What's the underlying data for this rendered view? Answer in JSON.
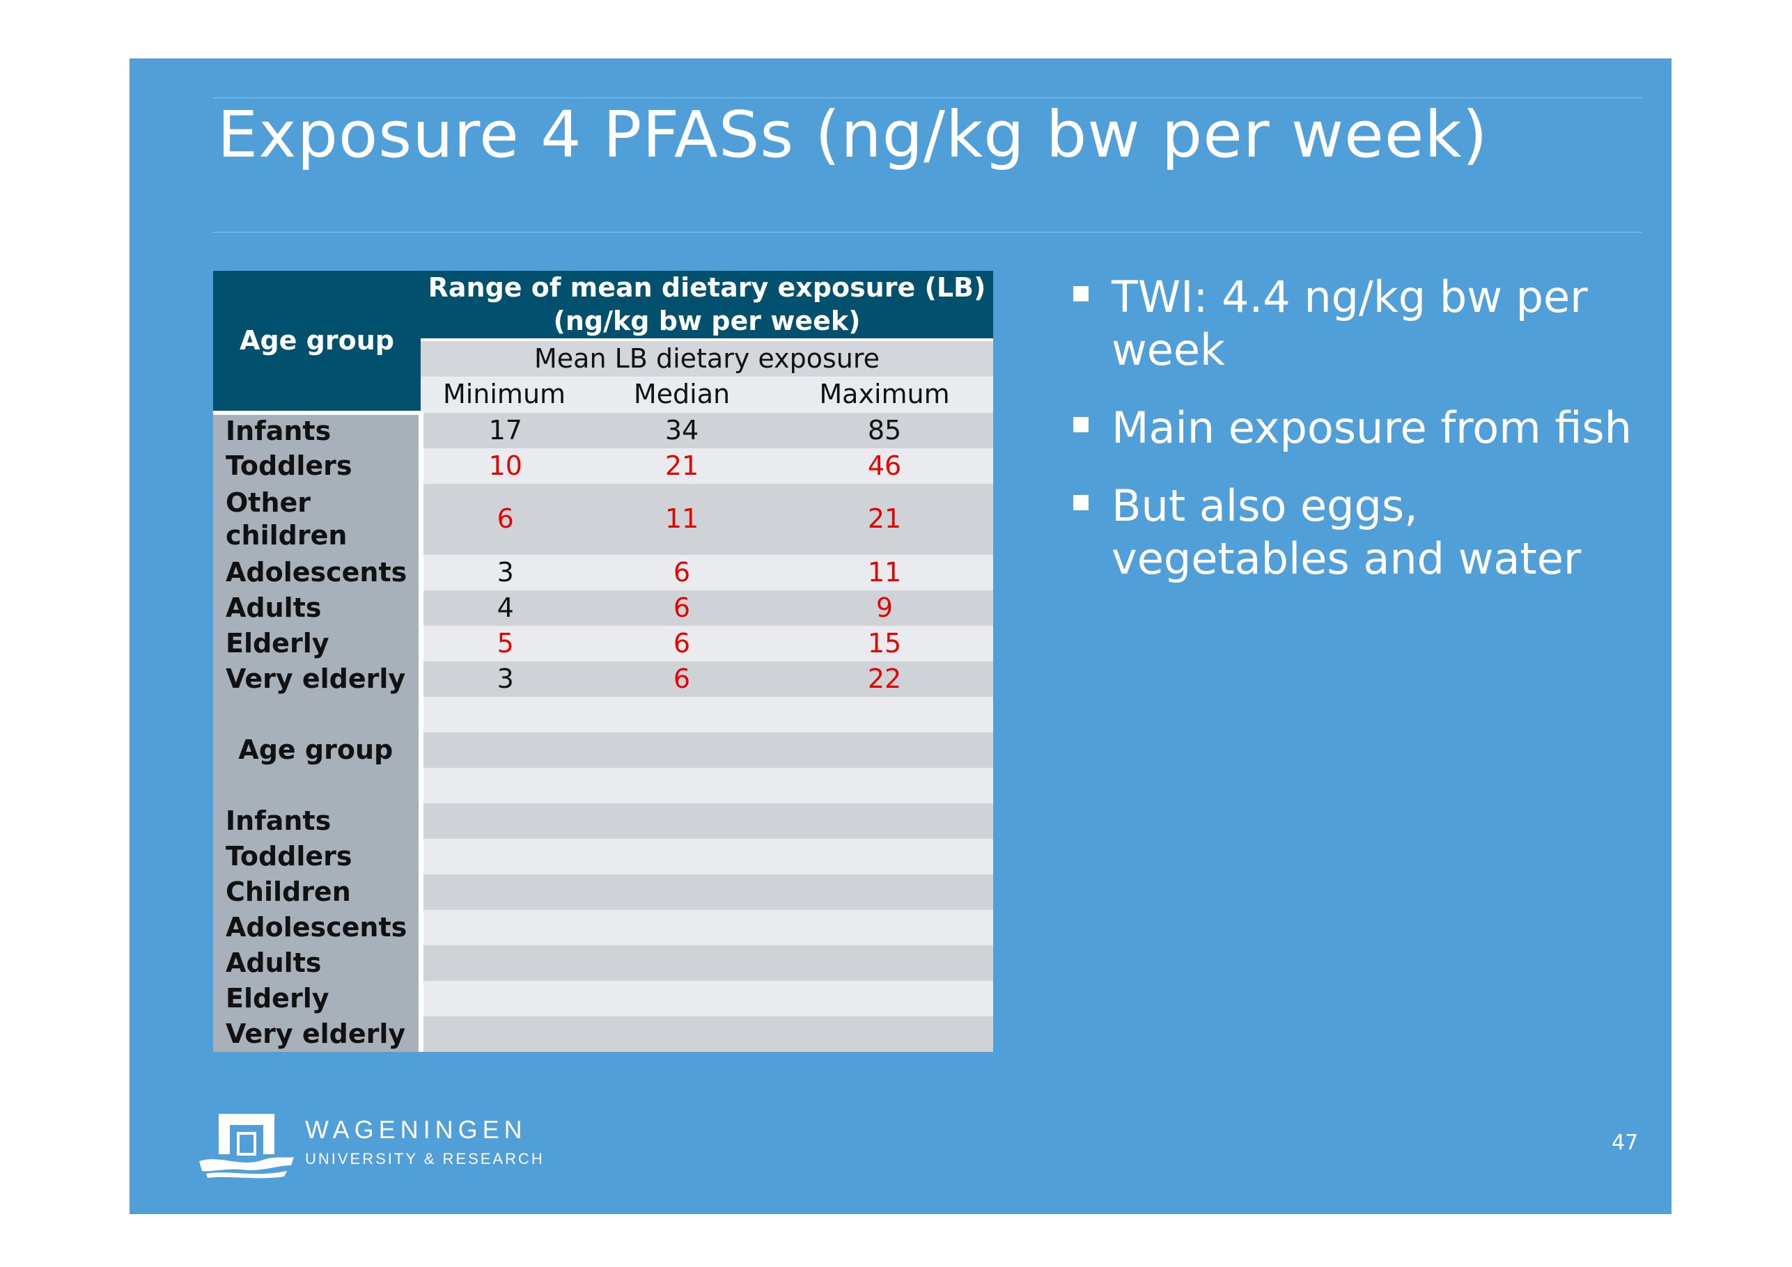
{
  "slide": {
    "title": "Exposure 4 PFASs (ng/kg bw per week)",
    "page_number": "47"
  },
  "table": {
    "age_group_header": "Age group",
    "range_header_line1": "Range of mean dietary exposure (LB)",
    "range_header_line2": "(ng/kg bw per week)",
    "subheader": "Mean LB dietary exposure",
    "columns": [
      "Minimum",
      "Median",
      "Maximum"
    ],
    "rows": [
      {
        "age": "Infants",
        "min": "17",
        "median": "34",
        "max": "85"
      },
      {
        "age": "Toddlers",
        "min": "10",
        "median": "21",
        "max": "46"
      },
      {
        "age_line1": "Other",
        "age_line2": "children",
        "min": "6",
        "median": "11",
        "max": "21"
      },
      {
        "age": "Adolescents",
        "min": "3",
        "median": "6",
        "max": "11"
      },
      {
        "age": "Adults",
        "min": "4",
        "median": "6",
        "max": "9"
      },
      {
        "age": "Elderly",
        "min": "5",
        "median": "6",
        "max": "15"
      },
      {
        "age": "Very elderly",
        "min": "3",
        "median": "6",
        "max": "22"
      }
    ],
    "second_age_group_header": "Age group",
    "second_rows": [
      "Infants",
      "Toddlers",
      "Children",
      "Adolescents",
      "Adults",
      "Elderly",
      "Very elderly"
    ]
  },
  "bullets": [
    "TWI: 4.4 ng/kg bw per week",
    "Main exposure from fish",
    "But also eggs, vegetables and water"
  ],
  "logo": {
    "name": "WAGENINGEN",
    "subtitle": "UNIVERSITY & RESEARCH"
  },
  "colors": {
    "slide_background": "#519fd8",
    "table_header": "#00506e",
    "highlight_text": "#e10600",
    "age_column": "#a8b0ba"
  }
}
